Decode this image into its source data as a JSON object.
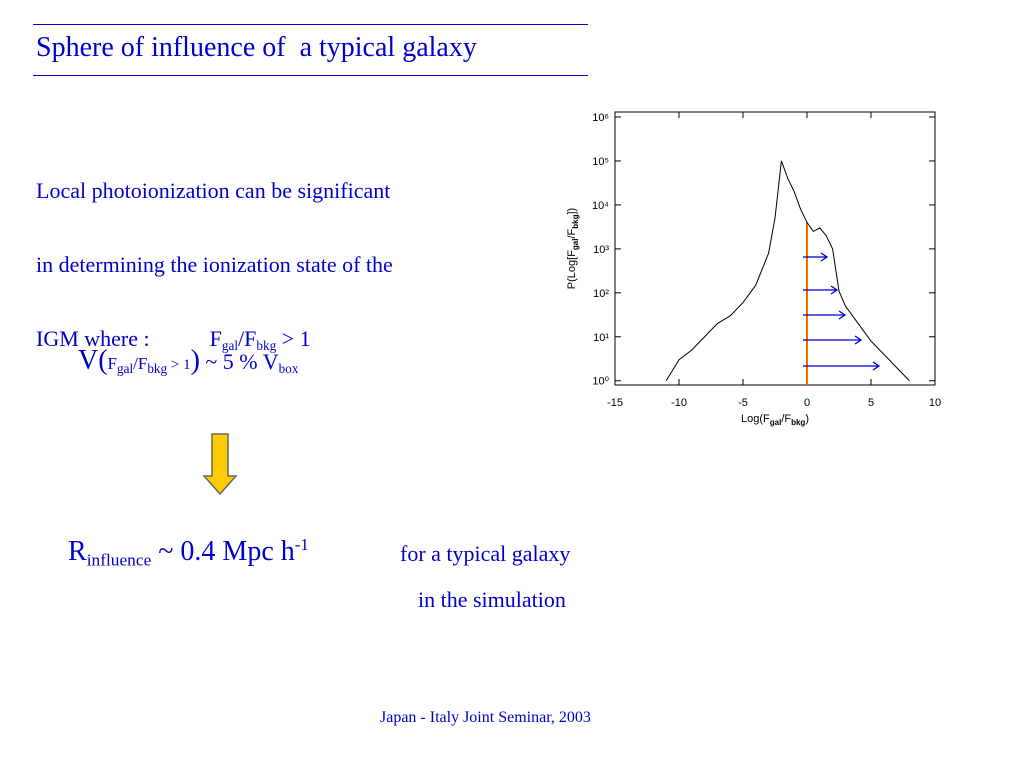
{
  "title": "Sphere of influence of  a typical galaxy",
  "intro": {
    "lines": [
      "Local photoionization can be significant",
      "in determining the ionization state of the",
      "IGM where :"
    ],
    "condition": [
      "F",
      "gal",
      "/F",
      "bkg",
      " > 1"
    ]
  },
  "volume": [
    "V(",
    "F",
    "gal",
    "/F",
    "bkg",
    " > 1",
    ")",
    " ~ 5 % V",
    "box"
  ],
  "radius": {
    "parts": [
      "R",
      "influence",
      " ~ 0.4 Mpc h",
      "-1"
    ],
    "note": [
      "for a typical galaxy",
      "in the simulation"
    ]
  },
  "footer": "Japan - Italy Joint Seminar, 2003",
  "chart_data": {
    "type": "line",
    "log_y": true,
    "color": "#000000",
    "x": [
      -11,
      -10,
      -9,
      -8,
      -7,
      -6,
      -5,
      -4,
      -3,
      -2.5,
      -2,
      -1.5,
      -1,
      -0.5,
      0,
      0.5,
      1,
      1.5,
      2,
      2.5,
      3,
      4,
      5,
      6,
      7,
      8
    ],
    "values": [
      1,
      3,
      5,
      10,
      20,
      30,
      60,
      150,
      800,
      5000,
      100000,
      40000,
      20000,
      8000,
      4000,
      2500,
      3000,
      2000,
      1000,
      110,
      50,
      20,
      8,
      4,
      2,
      1
    ],
    "xlim": [
      -15,
      10
    ],
    "xticks": [
      -15,
      -10,
      -5,
      0,
      5,
      10
    ],
    "ylim": [
      0.8,
      1300000
    ],
    "yticks": [
      {
        "value": 1,
        "label": "10⁰"
      },
      {
        "value": 10,
        "label": "10¹"
      },
      {
        "value": 100,
        "label": "10²"
      },
      {
        "value": 1000,
        "label": "10³"
      },
      {
        "value": 10000,
        "label": "10⁴"
      },
      {
        "value": 100000,
        "label": "10⁵"
      },
      {
        "value": 1000000,
        "label": "10⁶"
      }
    ],
    "xlabel": [
      "Log(F",
      "gal",
      "/F",
      "bkg",
      ")"
    ],
    "ylabel": [
      "P(Log[F",
      "gal",
      "/F",
      "bkg",
      "])"
    ],
    "vline_x": 0,
    "vline_color": "#ff6600"
  }
}
